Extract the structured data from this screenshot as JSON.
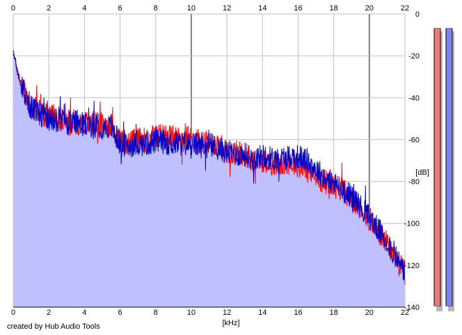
{
  "app": {
    "credit": "created by Hub Audio Tools"
  },
  "colors": {
    "background": "#ffffff",
    "plot_fill": "#c0c0ff",
    "plot_fill_line": "#a0a0e8",
    "grid_light": "#c0c0c0",
    "grid_major": "#808080",
    "left_channel": "#ff0000",
    "right_channel": "#0000cc",
    "meter_left_fill": "#ee7777",
    "meter_right_fill": "#8080ee",
    "meter_shadow": "#b8b8b8"
  },
  "meters": {
    "left_level": 1.0,
    "right_level": 1.0
  },
  "chart_data": {
    "type": "line",
    "xlabel": "[kHz]",
    "ylabel": "[dB]",
    "xlim": [
      0,
      22
    ],
    "ylim": [
      -140,
      0
    ],
    "x_ticks": [
      "0",
      "2",
      "4",
      "6",
      "8",
      "10",
      "12",
      "14",
      "16",
      "18",
      "20",
      "22"
    ],
    "y_ticks": [
      "0",
      "-20",
      "-40",
      "-60",
      "-80",
      "-100",
      "-120",
      "-140"
    ],
    "grid": true,
    "x_unit": "kHz",
    "y_unit": "dB",
    "series": [
      {
        "color": "#ff0000",
        "x": [
          0,
          0.25,
          0.5,
          0.75,
          1,
          1.5,
          2,
          2.5,
          3,
          3.5,
          4,
          4.5,
          5,
          5.5,
          6,
          6.5,
          7,
          7.5,
          8,
          8.5,
          9,
          9.5,
          10,
          10.5,
          11,
          11.5,
          12,
          12.5,
          13,
          13.5,
          14,
          14.5,
          15,
          15.5,
          16,
          16.5,
          17,
          17.5,
          18,
          18.5,
          19,
          19.5,
          20,
          20.5,
          21,
          21.5,
          22
        ],
        "y": [
          -18,
          -28,
          -34,
          -40,
          -44,
          -47,
          -49,
          -50,
          -51,
          -52,
          -52,
          -52,
          -53,
          -53,
          -60,
          -62,
          -60,
          -60,
          -58,
          -58,
          -59,
          -60,
          -60,
          -61,
          -62,
          -62,
          -66,
          -66,
          -67,
          -70,
          -70,
          -71,
          -72,
          -71,
          -72,
          -75,
          -78,
          -80,
          -82,
          -84,
          -88,
          -93,
          -98,
          -104,
          -110,
          -117,
          -124
        ]
      },
      {
        "color": "#0000cc",
        "x": [
          0,
          0.25,
          0.5,
          0.75,
          1,
          1.5,
          2,
          2.5,
          3,
          3.5,
          4,
          4.5,
          5,
          5.5,
          6,
          6.5,
          7,
          7.5,
          8,
          8.5,
          9,
          9.5,
          10,
          10.5,
          11,
          11.5,
          12,
          12.5,
          13,
          13.5,
          14,
          14.5,
          15,
          15.5,
          16,
          16.5,
          17,
          17.5,
          18,
          18.5,
          19,
          19.5,
          20,
          20.5,
          21,
          21.5,
          22
        ],
        "y": [
          -18,
          -28,
          -35,
          -41,
          -45,
          -48,
          -50,
          -51,
          -52,
          -52,
          -53,
          -53,
          -54,
          -54,
          -62,
          -63,
          -62,
          -62,
          -61,
          -61,
          -62,
          -62,
          -62,
          -63,
          -63,
          -64,
          -66,
          -67,
          -67,
          -69,
          -68,
          -69,
          -69,
          -68,
          -68,
          -70,
          -74,
          -78,
          -81,
          -84,
          -87,
          -92,
          -97,
          -103,
          -109,
          -116,
          -123
        ]
      }
    ]
  }
}
